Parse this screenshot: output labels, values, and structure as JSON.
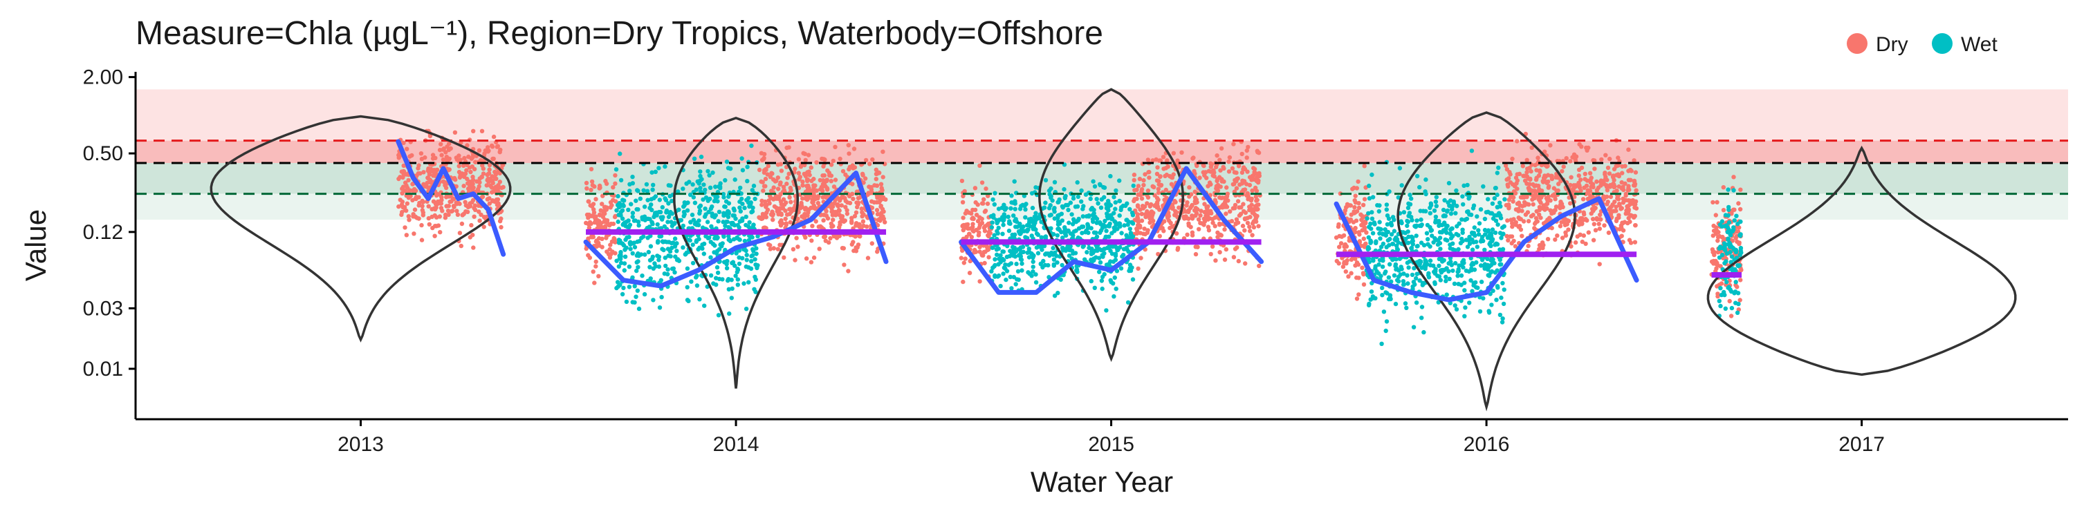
{
  "chart_data": {
    "type": "scatter",
    "title": "Measure=Chla (µgL⁻¹), Region=Dry Tropics, Waterbody=Offshore",
    "xlabel": "Water Year",
    "ylabel": "Value",
    "y_scale": "log",
    "ylim": [
      0.004,
      2.2
    ],
    "xlim": [
      2012.4,
      2017.55
    ],
    "x_ticks": [
      {
        "value": 2013,
        "label": "2013"
      },
      {
        "value": 2014,
        "label": "2014"
      },
      {
        "value": 2015,
        "label": "2015"
      },
      {
        "value": 2016,
        "label": "2016"
      },
      {
        "value": 2017,
        "label": "2017"
      }
    ],
    "y_ticks": [
      {
        "value": 2.0,
        "label": "2.00"
      },
      {
        "value": 0.5,
        "label": "0.50"
      },
      {
        "value": 0.12,
        "label": "0.12"
      },
      {
        "value": 0.03,
        "label": "0.03"
      },
      {
        "value": 0.01,
        "label": "0.01"
      }
    ],
    "grid": false,
    "legend": {
      "position": "top-right",
      "entries": [
        {
          "label": "Dry",
          "color": "#F8766D"
        },
        {
          "label": "Wet",
          "color": "#00BFC4"
        }
      ]
    },
    "colors": {
      "dry": "#F8766D",
      "wet": "#00BFC4",
      "dry_light": "#FBB6AE",
      "wet_light": "#84E1E3",
      "trend": "#3B5BFF",
      "trend_light": "#A3B2FF",
      "mean": "#A020F0",
      "mean_light": "#D08CF5",
      "violin": "#333333"
    },
    "reference_lines": [
      {
        "value": 0.63,
        "color": "#E41A1C"
      },
      {
        "value": 0.42,
        "color": "#000000"
      },
      {
        "value": 0.24,
        "color": "#006837"
      }
    ],
    "bands": [
      {
        "from": 0.63,
        "to": 1.6,
        "color": "#FDE3E3"
      },
      {
        "from": 0.42,
        "to": 0.63,
        "color": "#F9BCBC"
      },
      {
        "from": 0.24,
        "to": 0.42,
        "color": "#CFE5DA"
      },
      {
        "from": 0.15,
        "to": 0.24,
        "color": "#EAF4EF"
      }
    ],
    "series": [
      {
        "name": "Dry",
        "segments": [
          {
            "from": 2013.1,
            "to": 2013.38,
            "center": 0.28,
            "low": 0.025,
            "high": 0.75
          },
          {
            "from": 2013.6,
            "to": 2013.68,
            "center": 0.14,
            "low": 0.02,
            "high": 0.55
          },
          {
            "from": 2014.06,
            "to": 2014.4,
            "center": 0.2,
            "low": 0.03,
            "high": 0.75
          },
          {
            "from": 2014.6,
            "to": 2014.68,
            "center": 0.12,
            "low": 0.025,
            "high": 0.6
          },
          {
            "from": 2015.06,
            "to": 2015.4,
            "center": 0.2,
            "low": 0.025,
            "high": 0.85
          },
          {
            "from": 2015.6,
            "to": 2015.68,
            "center": 0.12,
            "low": 0.022,
            "high": 0.6
          },
          {
            "from": 2016.05,
            "to": 2016.4,
            "center": 0.22,
            "low": 0.025,
            "high": 0.75
          },
          {
            "from": 2016.6,
            "to": 2016.68,
            "center": 0.09,
            "low": 0.012,
            "high": 0.55
          }
        ]
      },
      {
        "name": "Wet",
        "segments": [
          {
            "from": 2013.68,
            "to": 2014.06,
            "center": 0.12,
            "low": 0.007,
            "high": 0.7
          },
          {
            "from": 2014.68,
            "to": 2015.06,
            "center": 0.11,
            "low": 0.02,
            "high": 0.75
          },
          {
            "from": 2015.68,
            "to": 2016.05,
            "center": 0.09,
            "low": 0.006,
            "high": 0.6
          },
          {
            "from": 2016.62,
            "to": 2016.68,
            "center": 0.08,
            "low": 0.01,
            "high": 0.4
          }
        ]
      }
    ],
    "mean_lines": [
      {
        "from": 2013.6,
        "to": 2014.4,
        "value": 0.12
      },
      {
        "from": 2014.6,
        "to": 2015.4,
        "value": 0.1
      },
      {
        "from": 2015.6,
        "to": 2016.4,
        "value": 0.08
      },
      {
        "from": 2016.6,
        "to": 2016.68,
        "value": 0.055
      }
    ],
    "trend_lines": [
      {
        "points": [
          [
            2013.1,
            0.62
          ],
          [
            2013.14,
            0.32
          ],
          [
            2013.18,
            0.22
          ],
          [
            2013.22,
            0.38
          ],
          [
            2013.26,
            0.22
          ],
          [
            2013.3,
            0.24
          ],
          [
            2013.34,
            0.18
          ],
          [
            2013.38,
            0.08
          ]
        ]
      },
      {
        "points": [
          [
            2013.6,
            0.1
          ],
          [
            2013.7,
            0.05
          ],
          [
            2013.8,
            0.045
          ],
          [
            2013.9,
            0.06
          ],
          [
            2014.0,
            0.09
          ],
          [
            2014.1,
            0.11
          ],
          [
            2014.2,
            0.15
          ],
          [
            2014.32,
            0.35
          ],
          [
            2014.4,
            0.07
          ]
        ]
      },
      {
        "points": [
          [
            2014.6,
            0.1
          ],
          [
            2014.7,
            0.04
          ],
          [
            2014.8,
            0.04
          ],
          [
            2014.9,
            0.07
          ],
          [
            2015.0,
            0.06
          ],
          [
            2015.1,
            0.1
          ],
          [
            2015.2,
            0.38
          ],
          [
            2015.3,
            0.15
          ],
          [
            2015.4,
            0.07
          ]
        ]
      },
      {
        "points": [
          [
            2015.6,
            0.2
          ],
          [
            2015.7,
            0.05
          ],
          [
            2015.8,
            0.04
          ],
          [
            2015.9,
            0.035
          ],
          [
            2016.0,
            0.04
          ],
          [
            2016.1,
            0.1
          ],
          [
            2016.2,
            0.16
          ],
          [
            2016.3,
            0.22
          ],
          [
            2016.4,
            0.05
          ]
        ]
      }
    ],
    "violins": [
      {
        "x": 2013,
        "half_width": 0.46,
        "low": 0.017,
        "high": 0.98,
        "peak": 0.4
      },
      {
        "x": 2014,
        "half_width": 0.2,
        "low": 0.007,
        "high": 0.95,
        "peak": 0.4
      },
      {
        "x": 2015,
        "half_width": 0.2,
        "low": 0.012,
        "high": 1.6,
        "peak": 0.3
      },
      {
        "x": 2016,
        "half_width": 0.26,
        "low": 0.005,
        "high": 1.05,
        "peak": 0.25
      },
      {
        "x": 2017,
        "half_width": 0.46,
        "low": 0.009,
        "high": 0.55,
        "peak": 0.025
      }
    ]
  }
}
